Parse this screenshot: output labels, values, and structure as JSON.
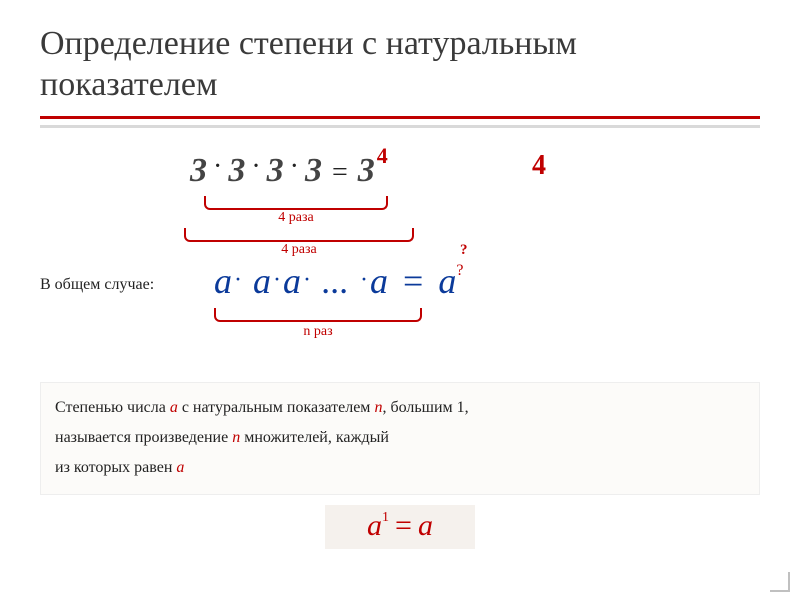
{
  "colors": {
    "accent": "#c00000",
    "title": "#3a3a3a",
    "blue": "#0b3a9a",
    "defbg": "#fcfbf9",
    "boxbg": "#f5f1ed"
  },
  "title": "Определение степени с натуральным показателем",
  "row1": {
    "base": "3",
    "dot": "·",
    "eq": "=",
    "exp_small": "4",
    "exp_big": "4",
    "brace_inner": "4 раза",
    "brace_outer": "4 раза",
    "qmark": "?"
  },
  "row2": {
    "label": "В общем случае:",
    "a": "a",
    "dot": "·",
    "dots": "...",
    "eq": "=",
    "sup": "?",
    "brace": "n  раз"
  },
  "def": {
    "t1": "Степенью числа ",
    "a": "a",
    "t2": "  с натуральным показателем  ",
    "n": "n",
    "t3": ", большим  1,",
    "t4": "называется произведение  ",
    "n2": "n",
    "t5": "  множителей, каждый",
    "t6": "из которых равен  ",
    "a2": "a"
  },
  "eqbox": {
    "a": "a",
    "sup": "1",
    "eq": "=",
    "rhs": "a"
  }
}
